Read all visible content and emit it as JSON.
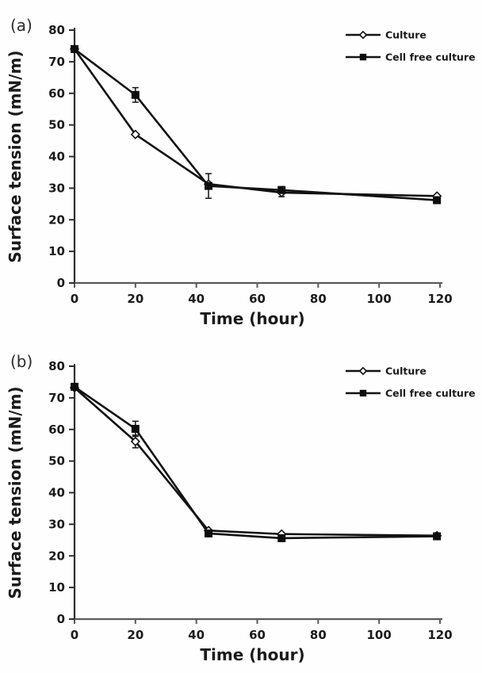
{
  "colors": {
    "line": "#121212",
    "marker_fill": "#0d0d0d",
    "marker_open_fill": "#ffffff",
    "axis": "#5a5a5a",
    "text": "#1a1a1a"
  },
  "chart_data": [
    {
      "type": "line",
      "panel_label": "(a)",
      "xlabel": "Time (hour)",
      "ylabel": "Surface tension (mN/m)",
      "xlim": [
        0,
        120
      ],
      "ylim": [
        0,
        80
      ],
      "x_ticks": [
        0,
        20,
        40,
        60,
        80,
        100,
        120
      ],
      "y_ticks": [
        0,
        10,
        20,
        30,
        40,
        50,
        60,
        70,
        80
      ],
      "grid": false,
      "legend_position": "top-right",
      "series": [
        {
          "name": "Culture",
          "marker": "diamond-open",
          "x": [
            0,
            20,
            44,
            68,
            119
          ],
          "y": [
            74,
            47,
            31.3,
            28.6,
            27.5
          ],
          "yerr": [
            0,
            0,
            0,
            1.3,
            0
          ]
        },
        {
          "name": "Cell free culture",
          "marker": "square-filled",
          "x": [
            0,
            20,
            44,
            68,
            119
          ],
          "y": [
            74,
            59.5,
            30.7,
            29.4,
            26.2
          ],
          "yerr": [
            0,
            2.3,
            3.9,
            1.1,
            0
          ]
        }
      ]
    },
    {
      "type": "line",
      "panel_label": "(b)",
      "xlabel": "Time (hour)",
      "ylabel": "Surface tension (mN/m)",
      "xlim": [
        0,
        120
      ],
      "ylim": [
        0,
        80
      ],
      "x_ticks": [
        0,
        20,
        40,
        60,
        80,
        100,
        120
      ],
      "y_ticks": [
        0,
        10,
        20,
        30,
        40,
        50,
        60,
        70,
        80
      ],
      "grid": false,
      "legend_position": "top-right",
      "series": [
        {
          "name": "Culture",
          "marker": "diamond-open",
          "x": [
            0,
            20,
            44,
            68,
            119
          ],
          "y": [
            73.2,
            56.2,
            28.0,
            26.9,
            26.4
          ],
          "yerr": [
            0,
            2.0,
            0,
            0,
            0
          ]
        },
        {
          "name": "Cell free culture",
          "marker": "square-filled",
          "x": [
            0,
            20,
            44,
            68,
            119
          ],
          "y": [
            73.5,
            60.2,
            27.1,
            25.6,
            26.2
          ],
          "yerr": [
            0,
            2.4,
            0,
            0,
            0.8
          ]
        }
      ]
    }
  ]
}
